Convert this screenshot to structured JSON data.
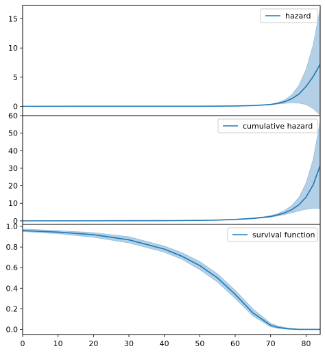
{
  "colors": {
    "line": "#1f77b4",
    "band": "#a6c8e3",
    "axes": "#000000",
    "background": "#ffffff"
  },
  "chart_data": [
    {
      "type": "line",
      "title": "",
      "xlabel": "",
      "ylabel": "",
      "legend": {
        "position": "top-right"
      },
      "xlim": [
        0,
        84
      ],
      "ylim": [
        -1.6,
        17.3
      ],
      "xticks": [],
      "yticks": [
        0,
        5,
        10,
        15
      ],
      "ytick_labels": [
        "0",
        "5",
        "10",
        "15"
      ],
      "series": [
        {
          "name": "hazard",
          "kind": "line",
          "x": [
            0,
            50,
            60,
            65,
            70,
            72,
            74,
            76,
            78,
            80,
            82,
            84
          ],
          "y": [
            0.0,
            0.01,
            0.05,
            0.12,
            0.3,
            0.5,
            0.8,
            1.3,
            2.1,
            3.4,
            5.1,
            7.2
          ]
        },
        {
          "name": "",
          "kind": "band",
          "x": [
            0,
            50,
            60,
            65,
            70,
            72,
            74,
            76,
            78,
            80,
            82,
            84
          ],
          "lower": [
            0.0,
            0.01,
            0.04,
            0.1,
            0.25,
            0.38,
            0.5,
            0.6,
            0.55,
            0.3,
            -0.4,
            -1.5
          ],
          "upper": [
            0.0,
            0.01,
            0.06,
            0.15,
            0.38,
            0.65,
            1.1,
            2.0,
            3.6,
            6.3,
            10.5,
            16.8
          ]
        }
      ]
    },
    {
      "type": "line",
      "title": "",
      "xlabel": "",
      "ylabel": "",
      "legend": {
        "position": "top-right"
      },
      "xlim": [
        0,
        84
      ],
      "ylim": [
        -2,
        60
      ],
      "xticks": [],
      "yticks": [
        0,
        10,
        20,
        30,
        40,
        50,
        60
      ],
      "ytick_labels": [
        "0",
        "10",
        "20",
        "30",
        "40",
        "50",
        "60"
      ],
      "series": [
        {
          "name": "cumulative hazard",
          "kind": "line",
          "x": [
            0,
            40,
            50,
            55,
            60,
            65,
            68,
            70,
            72,
            74,
            76,
            78,
            80,
            82,
            84
          ],
          "y": [
            0.0,
            0.1,
            0.25,
            0.45,
            0.8,
            1.4,
            2.0,
            2.5,
            3.4,
            4.6,
            6.4,
            9.2,
            13.5,
            20.5,
            31.5
          ]
        },
        {
          "name": "",
          "kind": "band",
          "x": [
            0,
            40,
            50,
            55,
            60,
            65,
            68,
            70,
            72,
            74,
            76,
            78,
            80,
            82,
            84
          ],
          "lower": [
            0.0,
            0.08,
            0.2,
            0.38,
            0.7,
            1.2,
            1.7,
            2.1,
            2.8,
            3.6,
            4.6,
            5.7,
            6.6,
            7.2,
            7.1
          ],
          "upper": [
            0.0,
            0.12,
            0.3,
            0.55,
            0.95,
            1.7,
            2.4,
            3.0,
            4.2,
            6.0,
            8.8,
            13.5,
            21.5,
            35.0,
            57.0
          ]
        }
      ]
    },
    {
      "type": "line",
      "title": "",
      "xlabel": "",
      "ylabel": "",
      "legend": {
        "position": "top-right"
      },
      "xlim": [
        0,
        84
      ],
      "ylim": [
        -0.05,
        1.02
      ],
      "xticks": [
        0,
        10,
        20,
        30,
        40,
        50,
        60,
        70,
        80
      ],
      "xtick_labels": [
        "0",
        "10",
        "20",
        "30",
        "40",
        "50",
        "60",
        "70",
        "80"
      ],
      "yticks": [
        0.0,
        0.2,
        0.4,
        0.6,
        0.8,
        1.0
      ],
      "ytick_labels": [
        "0.0",
        "0.2",
        "0.4",
        "0.6",
        "0.8",
        "1.0"
      ],
      "series": [
        {
          "name": "survival function",
          "kind": "line",
          "x": [
            0,
            10,
            20,
            30,
            40,
            45,
            50,
            55,
            60,
            65,
            70,
            72,
            75,
            78,
            84
          ],
          "y": [
            0.96,
            0.945,
            0.92,
            0.87,
            0.78,
            0.71,
            0.62,
            0.5,
            0.34,
            0.16,
            0.04,
            0.02,
            0.005,
            0.0,
            0.0
          ]
        },
        {
          "name": "",
          "kind": "band",
          "x": [
            0,
            10,
            20,
            30,
            40,
            45,
            50,
            55,
            60,
            65,
            70,
            72,
            75,
            78,
            84
          ],
          "lower": [
            0.95,
            0.93,
            0.895,
            0.84,
            0.75,
            0.68,
            0.58,
            0.46,
            0.3,
            0.13,
            0.025,
            0.01,
            0.002,
            0.0,
            0.0
          ],
          "upper": [
            0.975,
            0.96,
            0.94,
            0.9,
            0.81,
            0.745,
            0.66,
            0.54,
            0.38,
            0.2,
            0.06,
            0.035,
            0.012,
            0.003,
            0.0
          ]
        }
      ]
    }
  ]
}
